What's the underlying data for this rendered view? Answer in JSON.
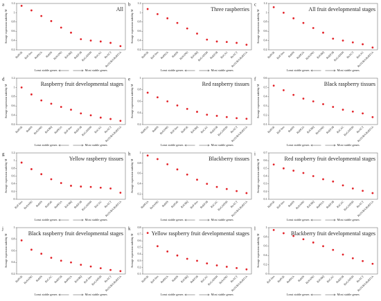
{
  "chart_data": [
    {
      "type": "scatter",
      "letter": "a",
      "title": "All",
      "ylabel": "Average expression stability M",
      "annotations": [
        "Least stable genes",
        "Most stable genes"
      ],
      "color": "#e32228",
      "categories": [
        "RuPGK",
        "RuF-box",
        "RuPP2A",
        "RuHIS",
        "RuSAND",
        "RuUBQ",
        "RuEF1B",
        "RuGAPDH",
        "RuCAC",
        "RuACT",
        "RuTUBA/RuEF1A"
      ],
      "values": [
        1.15,
        1.05,
        0.93,
        0.82,
        0.68,
        0.57,
        0.43,
        0.4,
        0.38,
        0.35,
        0.28
      ],
      "ylim": [
        0.2,
        1.2
      ],
      "yticks": [
        0.2,
        0.4,
        0.6,
        0.8,
        1,
        1.2
      ]
    },
    {
      "type": "scatter",
      "letter": "b",
      "title": "Three raspberries",
      "ylabel": "Average expression stability M",
      "annotations": [
        "Least stable genes",
        "Most stable genes"
      ],
      "color": "#e32228",
      "categories": [
        "RuPGK",
        "RuF-box",
        "RuPP2A",
        "RuHIS",
        "RuSAND",
        "RuUBQ",
        "RuGAPDH",
        "RuEF1B",
        "RuCAC",
        "RuACT",
        "RuTUBA/RuEF1A"
      ],
      "values": [
        1.08,
        0.97,
        0.88,
        0.78,
        0.66,
        0.55,
        0.42,
        0.38,
        0.37,
        0.35,
        0.31
      ],
      "ylim": [
        0.2,
        1.2
      ],
      "yticks": [
        0.2,
        0.4,
        0.6,
        0.8,
        1,
        1.2
      ]
    },
    {
      "type": "scatter",
      "letter": "c",
      "title": "All fruit developmental stages",
      "ylabel": "Average expression stability M",
      "annotations": [
        "Least stable genes",
        "Most stable genes"
      ],
      "color": "#e32228",
      "categories": [
        "RuPGK",
        "RuF-box",
        "RuHIS",
        "RuPP2A",
        "RuSAND",
        "RuUBQ",
        "RuEF1B",
        "RuGAPDH",
        "RuACT",
        "RuCAC",
        "RuTUBA/RuEF1A"
      ],
      "values": [
        1.12,
        1.0,
        0.88,
        0.78,
        0.67,
        0.57,
        0.44,
        0.4,
        0.36,
        0.32,
        0.25
      ],
      "ylim": [
        0.2,
        1.2
      ],
      "yticks": [
        0.2,
        0.4,
        0.6,
        0.8,
        1,
        1.2
      ]
    },
    {
      "type": "scatter",
      "letter": "d",
      "title": "Raspberry fruit developmental stages",
      "ylabel": "Average expression stability M",
      "annotations": [
        "Least stable genes",
        "Most stable genes"
      ],
      "color": "#e32228",
      "categories": [
        "RuPGK",
        "RuHIS",
        "RuSAND",
        "RuUBQ",
        "RuPP2A",
        "RuF-box",
        "RuEF1B",
        "RuGAPDH",
        "RuCAC",
        "RuACT",
        "RuTUBA/RuEF1A"
      ],
      "values": [
        1.0,
        0.85,
        0.72,
        0.65,
        0.58,
        0.52,
        0.44,
        0.4,
        0.35,
        0.32,
        0.28
      ],
      "ylim": [
        0.2,
        1.2
      ],
      "yticks": [
        0.2,
        0.4,
        0.6,
        0.8,
        1,
        1.2
      ]
    },
    {
      "type": "scatter",
      "letter": "e",
      "title": "Red raspberry tissues",
      "ylabel": "Average expression stability M",
      "annotations": [
        "Least stable genes",
        "Most stable genes"
      ],
      "color": "#e32228",
      "categories": [
        "RuPP2A",
        "RuHIS",
        "RuSAND",
        "RuF-box",
        "RuPGK",
        "RuUBQ",
        "RuCAC",
        "RuEF1B",
        "RuGAPDH",
        "RuACT",
        "RuTUBA/RuEF1A"
      ],
      "values": [
        0.75,
        0.67,
        0.6,
        0.53,
        0.47,
        0.42,
        0.37,
        0.35,
        0.33,
        0.31,
        0.3
      ],
      "ylim": [
        0.2,
        1.0
      ],
      "yticks": [
        0.2,
        0.4,
        0.6,
        0.8,
        1
      ]
    },
    {
      "type": "scatter",
      "letter": "f",
      "title": "Black raspberry tissues",
      "ylabel": "Average expression stability M",
      "annotations": [
        "Least stable genes",
        "Most stable genes"
      ],
      "color": "#e32228",
      "categories": [
        "RuPGK",
        "RuF-box",
        "RuHIS",
        "RuPP2A",
        "RuUBQ",
        "RuSAND",
        "RuEF1B",
        "RuCAC",
        "RuGAPDH",
        "RuACT",
        "RuTUBA/RuEF1A"
      ],
      "values": [
        0.52,
        0.47,
        0.42,
        0.38,
        0.35,
        0.32,
        0.29,
        0.26,
        0.24,
        0.22,
        0.18
      ],
      "ylim": [
        0.1,
        0.6
      ],
      "yticks": [
        0.1,
        0.2,
        0.3,
        0.4,
        0.5,
        0.6
      ]
    },
    {
      "type": "scatter",
      "letter": "g",
      "title": "Yellow raspberry tissues",
      "ylabel": "Average expression stability M",
      "annotations": [
        "Least stable genes",
        "Most stable genes"
      ],
      "color": "#e32228",
      "categories": [
        "RuF-box",
        "RuSAND",
        "RuHIS",
        "RuPGK",
        "RuPP2A",
        "RuUBQ",
        "RuEF1B",
        "RuGAPDH",
        "RuCAC",
        "RuACT",
        "RuTUBA/RuEF1A"
      ],
      "values": [
        0.95,
        0.78,
        0.65,
        0.52,
        0.42,
        0.35,
        0.33,
        0.32,
        0.3,
        0.28,
        0.17
      ],
      "ylim": [
        0,
        1.2
      ],
      "yticks": [
        0,
        0.2,
        0.4,
        0.6,
        0.8,
        1,
        1.2
      ]
    },
    {
      "type": "scatter",
      "letter": "h",
      "title": "Blackberry tissues",
      "ylabel": "Average expression stability M",
      "annotations": [
        "Least stable genes",
        "Most stable genes"
      ],
      "color": "#e32228",
      "categories": [
        "RuPP2A",
        "RuSAND",
        "RuHIS",
        "RuPGK",
        "RuUBQ",
        "RuF-box",
        "RuEF1B",
        "RuCAC",
        "RuGAPDH",
        "RuACT",
        "RuTUBA/RuEF1A"
      ],
      "values": [
        0.95,
        0.88,
        0.78,
        0.68,
        0.58,
        0.48,
        0.4,
        0.34,
        0.3,
        0.26,
        0.22
      ],
      "ylim": [
        0.1,
        1.0
      ],
      "yticks": [
        0.2,
        0.4,
        0.6,
        0.8,
        1
      ]
    },
    {
      "type": "scatter",
      "letter": "i",
      "title": "Red raspberry fruit developmental stages",
      "ylabel": "Average expression stability M",
      "annotations": [
        "Least stable genes",
        "Most stable genes"
      ],
      "color": "#e32228",
      "categories": [
        "RuPGK",
        "RuF-box",
        "RuHIS",
        "RuSAND",
        "RuUBQ",
        "RuPP2A",
        "RuEF1B",
        "RuCAC",
        "RuGAPDH",
        "RuACT",
        "RuTUBA/RuEF1A"
      ],
      "values": [
        0.55,
        0.5,
        0.47,
        0.44,
        0.4,
        0.36,
        0.33,
        0.28,
        0.24,
        0.21,
        0.18
      ],
      "ylim": [
        0.1,
        0.7
      ],
      "yticks": [
        0.1,
        0.2,
        0.3,
        0.4,
        0.5,
        0.6,
        0.7
      ]
    },
    {
      "type": "scatter",
      "letter": "j",
      "title": "Black raspberry fruit developmental stages",
      "ylabel": "Average expression stability M",
      "annotations": [
        "Least stable genes",
        "Most stable genes"
      ],
      "color": "#e32228",
      "categories": [
        "RuPGK",
        "RuSAND",
        "RuHIS",
        "RuCAC",
        "RuEF1B",
        "RuPP2A",
        "RuUBQ",
        "RuF-box",
        "RuGAPDH",
        "RuACT",
        "RuTUBA/RuEF1A"
      ],
      "values": [
        0.78,
        0.62,
        0.55,
        0.48,
        0.43,
        0.4,
        0.36,
        0.33,
        0.3,
        0.27,
        0.25
      ],
      "ylim": [
        0.2,
        1.0
      ],
      "yticks": [
        0.2,
        0.4,
        0.6,
        0.8,
        1
      ]
    },
    {
      "type": "scatter",
      "letter": "k",
      "title": "Yellow raspberry fruit developmental stages",
      "ylabel": "Average expression stability M",
      "annotations": [
        "Least stable genes",
        "Most stable genes"
      ],
      "color": "#e32228",
      "categories": [
        "RuPGK",
        "RuF-box",
        "RuPP2A",
        "RuHIS",
        "RuUBQ",
        "RuEF1B",
        "RuCAC",
        "RuGAPDH",
        "RuSAND",
        "RuACT",
        "RuTUBA/RuEF1A"
      ],
      "values": [
        0.72,
        0.52,
        0.44,
        0.38,
        0.33,
        0.3,
        0.26,
        0.23,
        0.21,
        0.19,
        0.17
      ],
      "ylim": [
        0.1,
        0.8
      ],
      "yticks": [
        0.1,
        0.2,
        0.3,
        0.4,
        0.5,
        0.6,
        0.7,
        0.8
      ]
    },
    {
      "type": "scatter",
      "letter": "l",
      "title": "Blackberry fruit developmental stages",
      "ylabel": "Average expression stability M",
      "annotations": [
        "Least stable genes",
        "Most stable genes"
      ],
      "color": "#e32228",
      "categories": [
        "RuF-box",
        "RuPGK",
        "RuPP2A",
        "RuHIS",
        "RuSAND",
        "RuUBQ",
        "RuCAC",
        "RuEF1B",
        "RuGAPDH",
        "RuACT",
        "RuTUBA/RuEF1A"
      ],
      "values": [
        0.95,
        0.88,
        0.82,
        0.75,
        0.68,
        0.6,
        0.52,
        0.42,
        0.34,
        0.28,
        0.22
      ],
      "ylim": [
        0,
        1.0
      ],
      "yticks": [
        0,
        0.2,
        0.4,
        0.6,
        0.8,
        1
      ]
    }
  ]
}
